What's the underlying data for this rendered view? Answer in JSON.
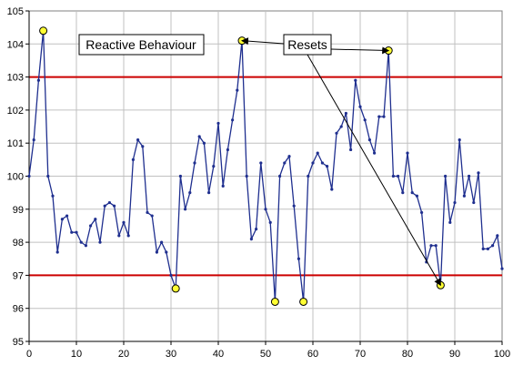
{
  "chart_data": {
    "type": "line",
    "xlim": [
      0,
      100
    ],
    "ylim": [
      95,
      105
    ],
    "x_ticks": [
      0,
      10,
      20,
      30,
      40,
      50,
      60,
      70,
      80,
      90,
      100
    ],
    "y_ticks": [
      95,
      96,
      97,
      98,
      99,
      100,
      101,
      102,
      103,
      104,
      105
    ],
    "grid": true,
    "series": [
      {
        "color": "#1f2f8f",
        "x": [
          0,
          1,
          2,
          3,
          4,
          5,
          6,
          7,
          8,
          9,
          10,
          11,
          12,
          13,
          14,
          15,
          16,
          17,
          18,
          19,
          20,
          21,
          22,
          23,
          24,
          25,
          26,
          27,
          28,
          29,
          30,
          31,
          32,
          33,
          34,
          35,
          36,
          37,
          38,
          39,
          40,
          41,
          42,
          43,
          44,
          45,
          46,
          47,
          48,
          49,
          50,
          51,
          52,
          53,
          54,
          55,
          56,
          57,
          58,
          59,
          60,
          61,
          62,
          63,
          64,
          65,
          66,
          67,
          68,
          69,
          70,
          71,
          72,
          73,
          74,
          75,
          76,
          77,
          78,
          79,
          80,
          81,
          82,
          83,
          84,
          85,
          86,
          87,
          88,
          89,
          90,
          91,
          92,
          93,
          94,
          95,
          96,
          97,
          98,
          99,
          100
        ],
        "y": [
          100.0,
          101.1,
          102.9,
          104.4,
          100.0,
          99.4,
          97.7,
          98.7,
          98.8,
          98.3,
          98.3,
          98.0,
          97.9,
          98.5,
          98.7,
          98.0,
          99.1,
          99.2,
          99.1,
          98.2,
          98.6,
          98.2,
          100.5,
          101.1,
          100.9,
          98.9,
          98.8,
          97.7,
          98.0,
          97.7,
          97.0,
          96.6,
          100.0,
          99.0,
          99.5,
          100.4,
          101.2,
          101.0,
          99.5,
          100.3,
          101.6,
          99.7,
          100.8,
          101.7,
          102.6,
          104.1,
          100.0,
          98.1,
          98.4,
          100.4,
          99.0,
          98.6,
          96.2,
          100.0,
          100.4,
          100.6,
          99.1,
          97.5,
          96.2,
          100.0,
          100.4,
          100.7,
          100.4,
          100.3,
          99.6,
          101.3,
          101.5,
          101.9,
          100.8,
          102.9,
          102.1,
          101.7,
          101.1,
          100.7,
          101.8,
          101.8,
          103.8,
          100.0,
          100.0,
          99.5,
          100.7,
          99.5,
          99.4,
          98.9,
          97.4,
          97.9,
          97.9,
          96.7,
          100.0,
          98.6,
          99.2,
          101.1,
          99.4,
          100.0,
          99.2,
          100.1,
          97.8,
          97.8,
          97.9,
          98.2,
          97.2
        ]
      }
    ],
    "highlight_points": [
      {
        "x": 3,
        "y": 104.4
      },
      {
        "x": 31,
        "y": 96.6
      },
      {
        "x": 45,
        "y": 104.1
      },
      {
        "x": 52,
        "y": 96.2
      },
      {
        "x": 58,
        "y": 96.2
      },
      {
        "x": 76,
        "y": 103.8
      },
      {
        "x": 87,
        "y": 96.7
      }
    ],
    "threshold_lines": [
      {
        "y": 103,
        "color": "#cc0000"
      },
      {
        "y": 97,
        "color": "#cc0000"
      }
    ],
    "annotations": [
      {
        "text": "Reactive Behaviour"
      },
      {
        "text": "Resets",
        "targets": [
          {
            "x": 45,
            "y": 104.1
          },
          {
            "x": 76,
            "y": 103.8
          },
          {
            "x": 87,
            "y": 96.7
          }
        ]
      }
    ]
  }
}
